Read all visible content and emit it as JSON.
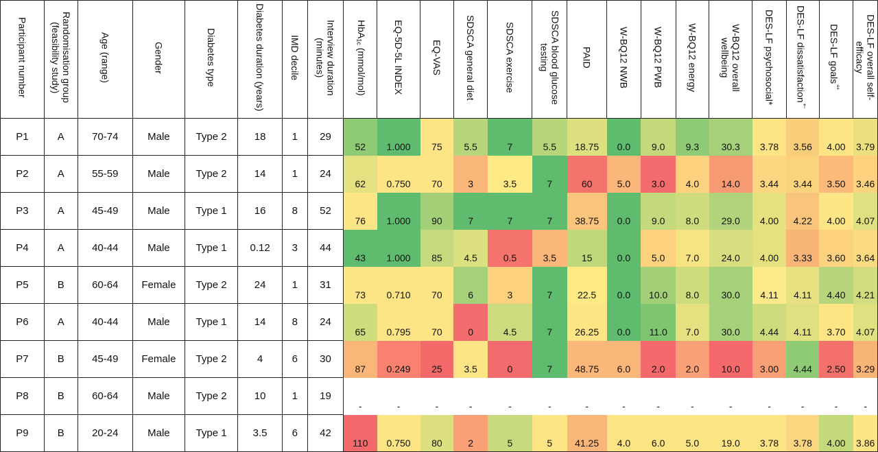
{
  "columns": [
    {
      "key": "participant",
      "label": "Participant number",
      "type": "demo"
    },
    {
      "key": "group",
      "label": "Randomisation group (feasibility study)",
      "type": "demo"
    },
    {
      "key": "age",
      "label": "Age (range)",
      "type": "demo"
    },
    {
      "key": "gender",
      "label": "Gender",
      "type": "demo"
    },
    {
      "key": "dtype",
      "label": "Diabetes type",
      "type": "demo"
    },
    {
      "key": "duration",
      "label": "Diabetes duration (years)",
      "type": "demo"
    },
    {
      "key": "imd",
      "label": "IMD decile",
      "type": "demo"
    },
    {
      "key": "interview",
      "label": "Interview duration (minutes)",
      "type": "demo"
    },
    {
      "key": "hba1c",
      "label": "HbA1c (mmol/mol)",
      "label_pre": "HbA",
      "label_sub": "1c",
      "label_post": " (mmol/mol)",
      "type": "score"
    },
    {
      "key": "eq5d",
      "label": "EQ-5D-5L INDEX",
      "type": "score"
    },
    {
      "key": "eqvas",
      "label": "EQ-VAS",
      "type": "score"
    },
    {
      "key": "sdsca_diet",
      "label": "SDSCA general diet",
      "type": "score"
    },
    {
      "key": "sdsca_ex",
      "label": "SDSCA exercise",
      "type": "score"
    },
    {
      "key": "sdsca_bg",
      "label": "SDSCA blood glucose testing",
      "type": "score"
    },
    {
      "key": "paid",
      "label": "PAID",
      "type": "score"
    },
    {
      "key": "nwb",
      "label": "W-BQ12 NWB",
      "type": "score"
    },
    {
      "key": "pwb",
      "label": "W-BQ12 PWB",
      "type": "score"
    },
    {
      "key": "energy",
      "label": "W-BQ12 energy",
      "type": "score"
    },
    {
      "key": "overall_wb",
      "label": "W-BQ12 overall wellbeing",
      "type": "score"
    },
    {
      "key": "psychosocial",
      "label": "DES-LF psychosocial*",
      "type": "score"
    },
    {
      "key": "dissatisfaction",
      "label": "DES-LF dissatisfaction†",
      "label_pre": "DES-LF dissatisfaction",
      "label_sup": "†",
      "type": "score"
    },
    {
      "key": "goals",
      "label": "DES-LF goals‡",
      "label_pre": "DES-LF goals",
      "label_sup": "‡",
      "type": "score"
    },
    {
      "key": "selfeff",
      "label": "DES-LF overall self-efficacy",
      "type": "score"
    }
  ],
  "rows": [
    {
      "cells": [
        "P1",
        "A",
        "70-74",
        "Male",
        "Type 2",
        "18",
        "1",
        "29",
        "52",
        "1.000",
        "75",
        "5.5",
        "7",
        "5.5",
        "18.75",
        "0.0",
        "9.0",
        "9.3",
        "30.3",
        "3.78",
        "3.56",
        "4.00",
        "3.79"
      ],
      "colors": [
        "#8fca74",
        "#5fbc6e",
        "#fde485",
        "#b7d67c",
        "#5fbc6e",
        "#b7d67c",
        "#dce07f",
        "#5fbc6e",
        "#c3d97c",
        "#8fca74",
        "#a6d07a",
        "#fde485",
        "#f8ce7a",
        "#fde485",
        "#ecdf80"
      ]
    },
    {
      "cells": [
        "P2",
        "A",
        "55-59",
        "Male",
        "Type 2",
        "14",
        "1",
        "24",
        "62",
        "0.750",
        "70",
        "3",
        "3.5",
        "7",
        "60",
        "5.0",
        "3.0",
        "4.0",
        "14.0",
        "3.44",
        "3.44",
        "3.50",
        "3.46"
      ],
      "colors": [
        "#e3e180",
        "#fde485",
        "#fde485",
        "#fab678",
        "#feea84",
        "#5fbc6e",
        "#f4736d",
        "#fbb67a",
        "#f26b6d",
        "#fcd27f",
        "#f69a74",
        "#fcd680",
        "#fcd37d",
        "#fbb97a",
        "#fcd27f"
      ]
    },
    {
      "cells": [
        "P3",
        "A",
        "45-49",
        "Male",
        "Type 1",
        "16",
        "8",
        "52",
        "76",
        "1.000",
        "90",
        "7",
        "7",
        "7",
        "38.75",
        "0.0",
        "9.0",
        "8.0",
        "29.0",
        "4.00",
        "4.22",
        "4.00",
        "4.07"
      ],
      "colors": [
        "#fde485",
        "#5fbc6e",
        "#a3cf77",
        "#5fbc6e",
        "#5fbc6e",
        "#5fbc6e",
        "#f9c47c",
        "#5fbc6e",
        "#c3d97c",
        "#cedc7e",
        "#b0d37b",
        "#e5e181",
        "#f9c47c",
        "#fde485",
        "#dfe080"
      ]
    },
    {
      "cells": [
        "P4",
        "A",
        "40-44",
        "Male",
        "Type 1",
        "0.12",
        "3",
        "44",
        "43",
        "1.000",
        "85",
        "4.5",
        "0.5",
        "3.5",
        "15",
        "0.0",
        "5.0",
        "7.0",
        "24.0",
        "4.00",
        "3.33",
        "3.60",
        "3.64"
      ],
      "colors": [
        "#5fbc6e",
        "#5fbc6e",
        "#c6da7d",
        "#dde07f",
        "#f4736d",
        "#fbb67a",
        "#c0d87c",
        "#5fbc6e",
        "#fcd27f",
        "#f6e482",
        "#d8de7f",
        "#e5e181",
        "#f9b478",
        "#fcd27f",
        "#fbdb81"
      ]
    },
    {
      "cells": [
        "P5",
        "B",
        "60-64",
        "Female",
        "Type 2",
        "24",
        "1",
        "31",
        "73",
        "0.710",
        "70",
        "6",
        "3",
        "7",
        "22.5",
        "0.0",
        "10.0",
        "8.0",
        "30.0",
        "4.11",
        "4.11",
        "4.40",
        "4.21"
      ],
      "colors": [
        "#fde485",
        "#fde485",
        "#fde485",
        "#a6d07a",
        "#fcd27f",
        "#5fbc6e",
        "#feea84",
        "#5fbc6e",
        "#a3cf77",
        "#cedc7e",
        "#a6d07a",
        "#fce98a",
        "#e7e181",
        "#b7d67c",
        "#d3dd7f"
      ]
    },
    {
      "cells": [
        "P6",
        "A",
        "40-44",
        "Male",
        "Type 1",
        "14",
        "8",
        "24",
        "65",
        "0.795",
        "70",
        "0",
        "4.5",
        "7",
        "26.25",
        "0.0",
        "11.0",
        "7.0",
        "30.0",
        "4.44",
        "4.11",
        "3.70",
        "4.07"
      ],
      "colors": [
        "#cedc7e",
        "#fde485",
        "#fde485",
        "#f26b6d",
        "#ccdb7e",
        "#5fbc6e",
        "#fde485",
        "#5fbc6e",
        "#7dc571",
        "#e5e181",
        "#a6d07a",
        "#cedc7e",
        "#e0e080",
        "#fde485",
        "#dfe080"
      ]
    },
    {
      "cells": [
        "P7",
        "B",
        "45-49",
        "Female",
        "Type 2",
        "4",
        "6",
        "30",
        "87",
        "0.249",
        "25",
        "3.5",
        "0",
        "7",
        "48.75",
        "6.0",
        "2.0",
        "2.0",
        "10.0",
        "3.00",
        "4.44",
        "2.50",
        "3.29"
      ],
      "colors": [
        "#fab678",
        "#f8816f",
        "#f46a6b",
        "#fde485",
        "#f26b6d",
        "#5fbc6e",
        "#fbb67a",
        "#fbb67a",
        "#f4696b",
        "#f9a076",
        "#f4696b",
        "#f9a076",
        "#8fca74",
        "#f4706d",
        "#f9b478"
      ]
    },
    {
      "cells": [
        "P8",
        "B",
        "60-64",
        "Male",
        "Type 2",
        "10",
        "1",
        "19",
        "-",
        "-",
        "-",
        "-",
        "-",
        "-",
        "-",
        "-",
        "-",
        "-",
        "-",
        "-",
        "-",
        "-",
        "-"
      ],
      "colors": [
        "#ffffff",
        "#ffffff",
        "#ffffff",
        "#ffffff",
        "#ffffff",
        "#ffffff",
        "#ffffff",
        "#ffffff",
        "#ffffff",
        "#ffffff",
        "#ffffff",
        "#ffffff",
        "#ffffff",
        "#ffffff",
        "#ffffff"
      ]
    },
    {
      "cells": [
        "P9",
        "B",
        "20-24",
        "Male",
        "Type 1",
        "3.5",
        "6",
        "42",
        "110",
        "0.750",
        "80",
        "2",
        "5",
        "5",
        "41.25",
        "4.0",
        "6.0",
        "5.0",
        "19.0",
        "3.78",
        "3.78",
        "4.00",
        "3.86"
      ],
      "colors": [
        "#f4696b",
        "#fde485",
        "#dde080",
        "#f9a076",
        "#c6da7d",
        "#fde485",
        "#fab678",
        "#fde485",
        "#fde485",
        "#fde485",
        "#fde485",
        "#fde485",
        "#fcd680",
        "#c3d97c",
        "#fde485"
      ]
    }
  ]
}
